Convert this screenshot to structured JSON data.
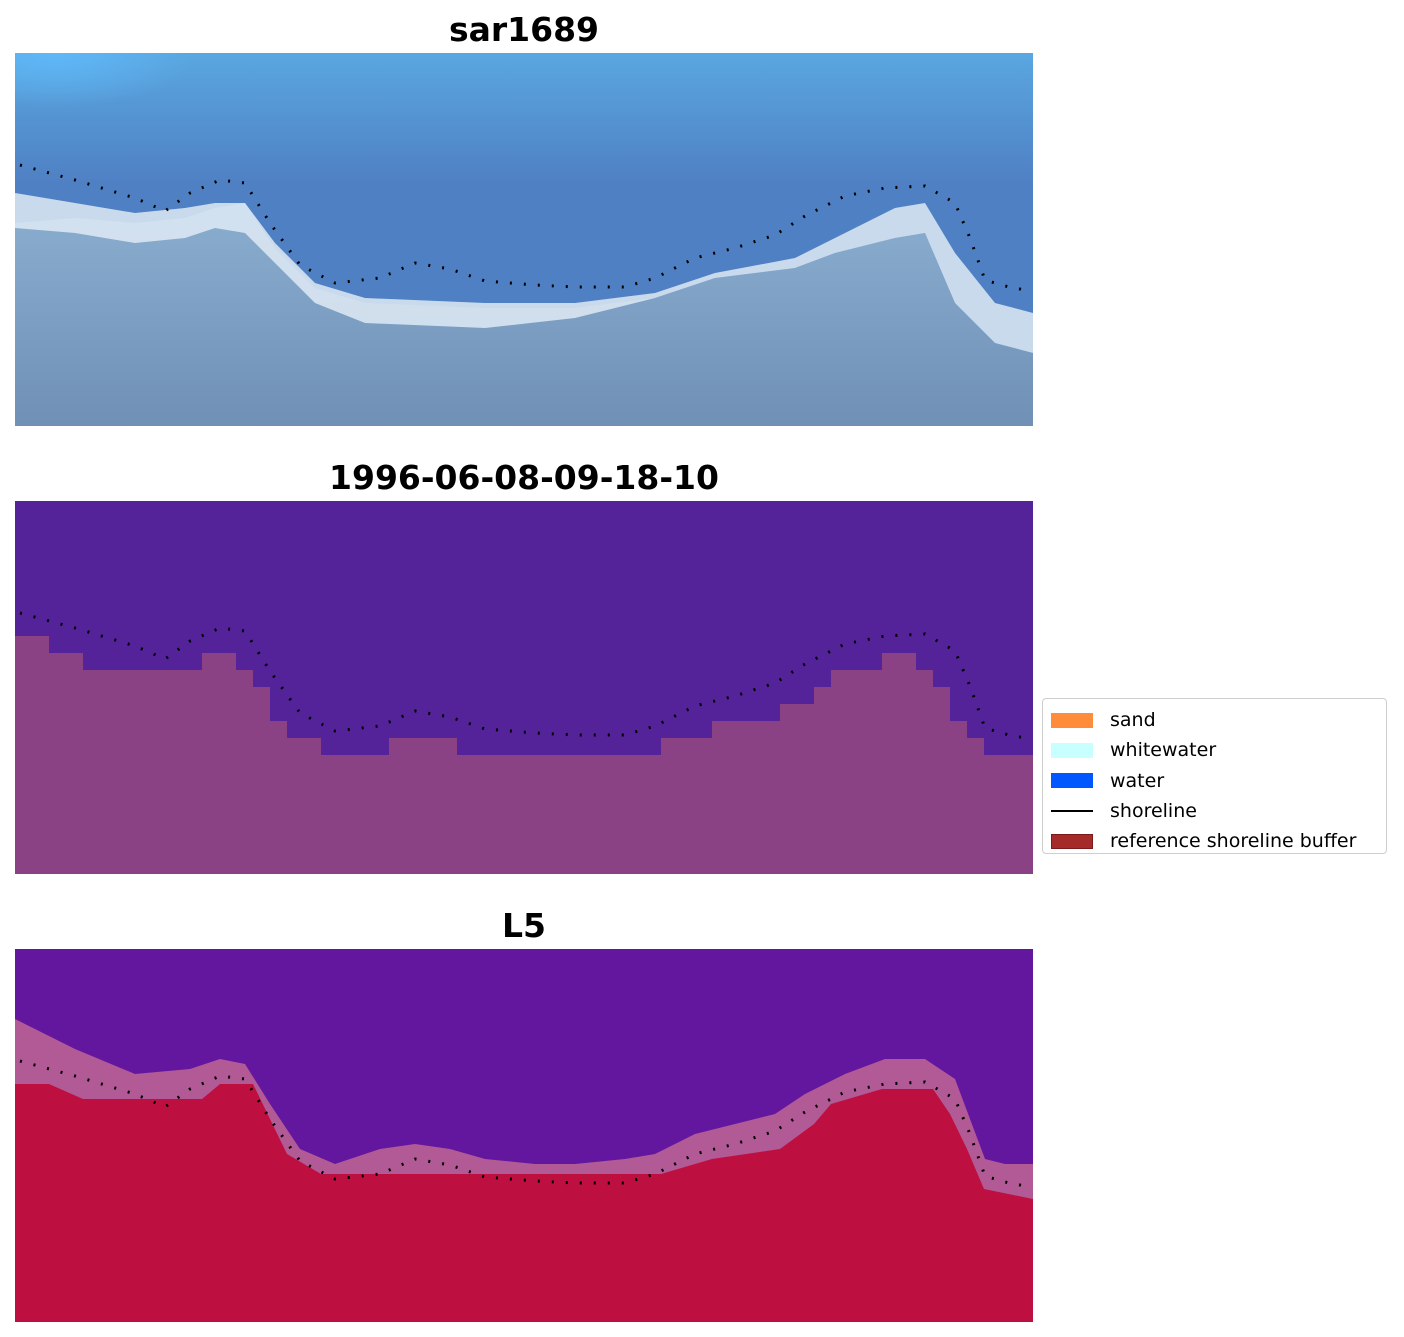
{
  "panels": [
    {
      "title": "sar1689"
    },
    {
      "title": "1996-06-08-09-18-10"
    },
    {
      "title": "L5"
    }
  ],
  "legend": [
    {
      "label": "sand",
      "color": "#ff8c3a",
      "kind": "patch"
    },
    {
      "label": "whitewater",
      "color": "#c8ffff",
      "kind": "patch"
    },
    {
      "label": "water",
      "color": "#0057ff",
      "kind": "patch"
    },
    {
      "label": "shoreline",
      "color": "#000000",
      "kind": "line"
    },
    {
      "label": "reference shoreline buffer",
      "color": "#a52a2a",
      "kind": "patch"
    }
  ],
  "colors": {
    "rgb_water": "#4d78c0",
    "rgb_whitewater": "#e0ecf5",
    "rgb_land": "#7392b6",
    "class_water_overlay": "#54239a",
    "class_land_overlay": "#8a4285",
    "ndwi_water": "#63179e",
    "ndwi_land": "#bd1040",
    "shoreline": "#000000"
  }
}
